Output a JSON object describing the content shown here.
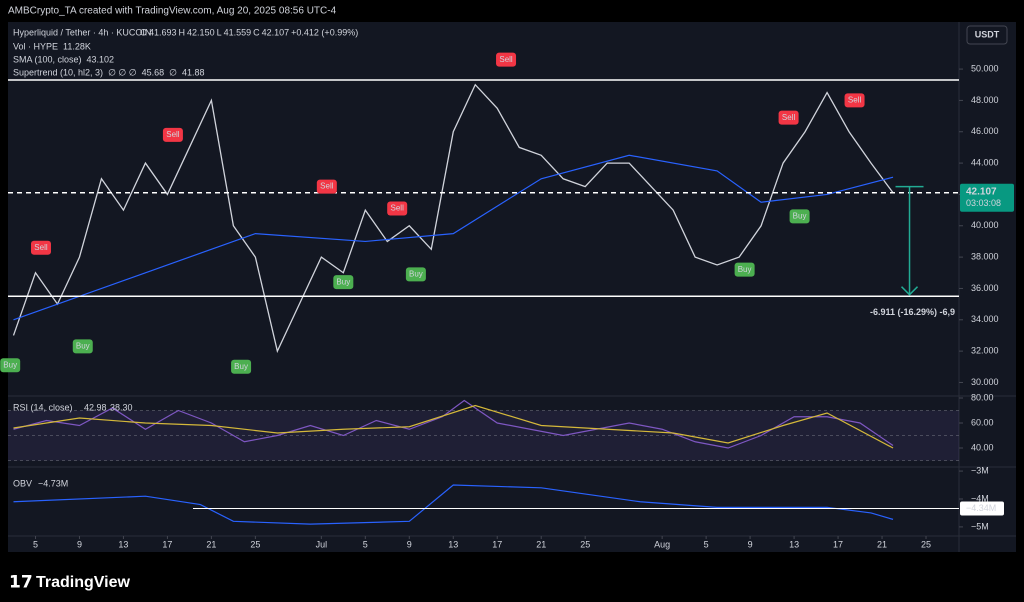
{
  "header": {
    "credit": "AMBCrypto_TA created with TradingView.com, Aug 20, 2025 08:56 UTC-4",
    "currency": "USDT",
    "brand": "TradingView"
  },
  "chart_data": [
    {
      "type": "line",
      "title": "Hyperliquid / Tether · 4h · KUCOIN",
      "ohlc": [
        "O",
        "41.693",
        "H",
        "42.150",
        "L",
        "41.559",
        "C",
        "42.107",
        "+0.412 (+0.99%)"
      ],
      "legend_lines": [
        [
          "Vol · HYPE",
          "11.28K"
        ],
        [
          "SMA (100, close)",
          "43.102"
        ],
        [
          "Supertrend (10, hl2, 3)",
          "∅ ∅ ∅",
          "45.68",
          "∅",
          "41.88"
        ]
      ],
      "xlim": [
        -2.5,
        84
      ],
      "ylim": [
        29.2,
        51.6
      ],
      "yticks": [
        {
          "value": 30,
          "label": "30.000"
        },
        {
          "value": 32,
          "label": "32.000"
        },
        {
          "value": 34,
          "label": "34.000"
        },
        {
          "value": 36,
          "label": "36.000"
        },
        {
          "value": 38,
          "label": "38.000"
        },
        {
          "value": 40,
          "label": "40.000"
        },
        {
          "value": 42,
          "label": "42.000"
        },
        {
          "value": 44,
          "label": "44.000"
        },
        {
          "value": 46,
          "label": "46.000"
        },
        {
          "value": 48,
          "label": "48.000"
        },
        {
          "value": 50,
          "label": "50.000"
        }
      ],
      "series": [
        {
          "name": "Hyperliquid / Tether",
          "color": "#d1d4dc",
          "x": [
            -2,
            0,
            2,
            4,
            6,
            8,
            10,
            12,
            14,
            16,
            18,
            20,
            22,
            24,
            26,
            28,
            30,
            32,
            34,
            36,
            38,
            40,
            42,
            44,
            46,
            48,
            50,
            52,
            54,
            56,
            58,
            60,
            62,
            64,
            66,
            68,
            70,
            72,
            74,
            76,
            78
          ],
          "values": [
            33,
            37,
            35,
            38,
            43,
            41,
            44,
            42,
            45,
            48,
            40,
            38,
            32,
            35,
            38,
            37,
            41,
            39,
            40,
            38.5,
            46,
            49,
            47.5,
            45,
            44.5,
            43,
            42.5,
            44,
            44,
            42.5,
            41,
            38,
            37.5,
            38,
            40,
            44,
            46,
            48.5,
            46,
            44,
            42.107
          ]
        },
        {
          "name": "SMA (100, close)",
          "color": "#2962ff",
          "x": [
            -2,
            10,
            20,
            30,
            38,
            46,
            54,
            62,
            66,
            72,
            78
          ],
          "values": [
            34,
            37,
            39.5,
            39,
            39.5,
            43,
            44.5,
            43.5,
            41.5,
            42,
            43.102
          ]
        }
      ],
      "levels": [
        49.3,
        35.5
      ],
      "current": {
        "value": 42.107,
        "label": "42.107",
        "countdown": "03:03:08"
      },
      "measure": {
        "x": 79.5,
        "from": 42.5,
        "to": 35.6,
        "label": "-6.911 (-16.29%) -6,9"
      },
      "signals": [
        {
          "label": "Sell",
          "x": 0.5,
          "y": 38.6
        },
        {
          "label": "Sell",
          "x": 12.5,
          "y": 45.8
        },
        {
          "label": "Sell",
          "x": 26.5,
          "y": 42.5
        },
        {
          "label": "Sell",
          "x": 32.9,
          "y": 41.1
        },
        {
          "label": "Sell",
          "x": 42.8,
          "y": 50.6
        },
        {
          "label": "Sell",
          "x": 68.5,
          "y": 46.9
        },
        {
          "label": "Sell",
          "x": 74.5,
          "y": 48
        },
        {
          "label": "Buy",
          "x": -2.3,
          "y": 31.1
        },
        {
          "label": "Buy",
          "x": 4.3,
          "y": 32.3
        },
        {
          "label": "Buy",
          "x": 18.7,
          "y": 31
        },
        {
          "label": "Buy",
          "x": 28,
          "y": 36.4
        },
        {
          "label": "Buy",
          "x": 34.6,
          "y": 36.9
        },
        {
          "label": "Buy",
          "x": 64.5,
          "y": 37.2
        },
        {
          "label": "Buy",
          "x": 69.5,
          "y": 40.6
        }
      ]
    },
    {
      "type": "line",
      "title": "RSI (14, close)",
      "legend": [
        "42.98",
        "38.30"
      ],
      "xlim": [
        -2.5,
        84
      ],
      "ylim": [
        25.6,
        81.6
      ],
      "yticks": [
        {
          "value": 40,
          "label": "40.00"
        },
        {
          "value": 60,
          "label": "60.00"
        },
        {
          "value": 80,
          "label": "80.00"
        }
      ],
      "series": [
        {
          "name": "RSI",
          "color": "#7e57c2",
          "x": [
            -2,
            1,
            4,
            7,
            10,
            13,
            16,
            19,
            22,
            25,
            28,
            31,
            34,
            37,
            39,
            42,
            45,
            48,
            51,
            54,
            57,
            60,
            63,
            66,
            69,
            72,
            75,
            78
          ],
          "values": [
            55,
            62,
            58,
            72,
            55,
            70,
            60,
            45,
            50,
            58,
            50,
            62,
            55,
            65,
            78,
            60,
            55,
            50,
            55,
            60,
            55,
            45,
            40,
            50,
            65,
            65,
            60,
            42
          ]
        },
        {
          "name": "RSI-based MA",
          "color": "#d4b83a",
          "x": [
            -2,
            4,
            10,
            16,
            22,
            28,
            34,
            40,
            46,
            52,
            58,
            63,
            68,
            72,
            78
          ],
          "values": [
            56,
            64,
            60,
            58,
            52,
            55,
            57,
            74,
            58,
            55,
            52,
            44,
            58,
            68,
            40
          ]
        }
      ]
    },
    {
      "type": "line",
      "title": "OBV",
      "legend": "−4.73M",
      "xlim": [
        -2.5,
        84
      ],
      "ylim": [
        -5290000,
        -2890000
      ],
      "yticks": [
        {
          "value": -3000000,
          "label": "−3M"
        },
        {
          "value": -4000000,
          "label": "−4M"
        },
        {
          "value": -5000000,
          "label": "−5M"
        }
      ],
      "level": {
        "value": -4340000,
        "label": "−4.34M"
      },
      "xticks": [
        {
          "value": 0,
          "label": "5"
        },
        {
          "value": 4,
          "label": "9"
        },
        {
          "value": 8,
          "label": "13"
        },
        {
          "value": 12,
          "label": "17"
        },
        {
          "value": 16,
          "label": "21"
        },
        {
          "value": 20,
          "label": "25"
        },
        {
          "value": 26,
          "label": "Jul"
        },
        {
          "value": 30,
          "label": "5"
        },
        {
          "value": 34,
          "label": "9"
        },
        {
          "value": 38,
          "label": "13"
        },
        {
          "value": 42,
          "label": "17"
        },
        {
          "value": 46,
          "label": "21"
        },
        {
          "value": 50,
          "label": "25"
        },
        {
          "value": 57,
          "label": "Aug"
        },
        {
          "value": 61,
          "label": "5"
        },
        {
          "value": 65,
          "label": "9"
        },
        {
          "value": 69,
          "label": "13"
        },
        {
          "value": 73,
          "label": "17"
        },
        {
          "value": 77,
          "label": "21"
        },
        {
          "value": 81,
          "label": "25"
        }
      ],
      "series": [
        {
          "name": "OBV",
          "color": "#2962ff",
          "x": [
            -2,
            10,
            15,
            18,
            25,
            34,
            38,
            46,
            55,
            62,
            72,
            76,
            78
          ],
          "values": [
            -4100000,
            -3900000,
            -4200000,
            -4800000,
            -4900000,
            -4800000,
            -3500000,
            -3600000,
            -4100000,
            -4300000,
            -4300000,
            -4500000,
            -4730000
          ]
        }
      ]
    }
  ]
}
